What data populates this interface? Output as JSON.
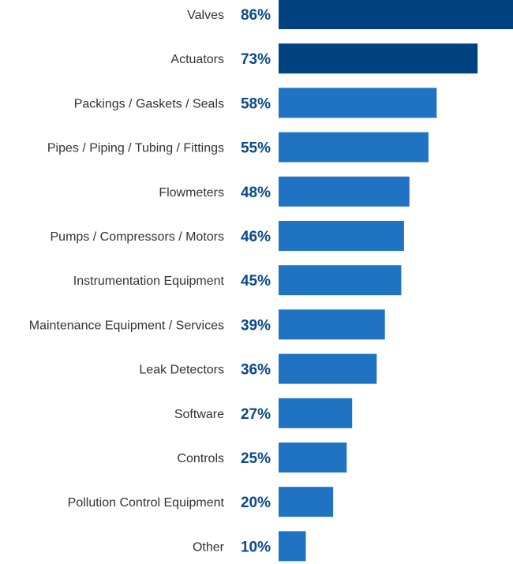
{
  "chart_data": {
    "type": "bar",
    "orientation": "horizontal",
    "categories": [
      "Valves",
      "Actuators",
      "Packings / Gaskets / Seals",
      "Pipes / Piping / Tubing / Fittings",
      "Flowmeters",
      "Pumps / Compressors / Motors",
      "Instrumentation Equipment",
      "Maintenance Equipment / Services",
      "Leak Detectors",
      "Software",
      "Controls",
      "Pollution Control Equipment",
      "Other"
    ],
    "values": [
      86,
      73,
      58,
      55,
      48,
      46,
      45,
      39,
      36,
      27,
      25,
      20,
      10
    ],
    "value_labels": [
      "86%",
      "73%",
      "58%",
      "55%",
      "48%",
      "46%",
      "45%",
      "39%",
      "36%",
      "27%",
      "25%",
      "20%",
      "10%"
    ],
    "title": "",
    "xlabel": "",
    "ylabel": "",
    "xlim": [
      0,
      86
    ],
    "grid": false,
    "legend": "none",
    "colors": {
      "highlight": "#00427f",
      "bar": "#1f73c2",
      "value_text": "#0a4a86",
      "label_text": "#333333"
    },
    "highlighted_indices": [
      0,
      1
    ]
  }
}
